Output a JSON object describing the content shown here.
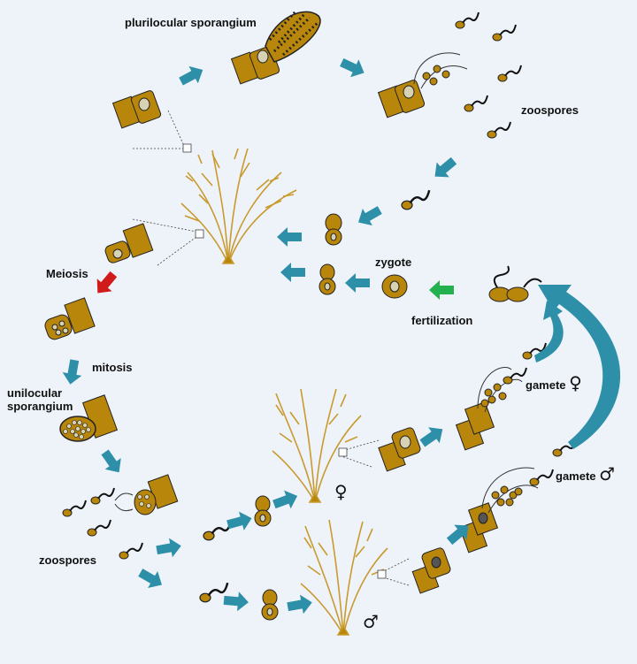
{
  "labels": {
    "plurilocular": "plurilocular sporangium",
    "zoospores_top": "zoospores",
    "zygote": "zygote",
    "fertilization": "fertilization",
    "meiosis": "Meiosis",
    "mitosis": "mitosis",
    "unilocular_line1": "unilocular",
    "unilocular_line2": "sporangium",
    "zoospores_bottom": "zoospores",
    "gamete_female_text": "gamete",
    "gamete_female_symbol": "♀",
    "gamete_male_text": "gamete",
    "gamete_male_symbol": "♂",
    "female_plant_symbol": "♀",
    "male_plant_symbol": "♂"
  },
  "colors": {
    "background": "#eef3f9",
    "cell_fill": "#b8860b",
    "cell_outline": "#222222",
    "nucleus_fill": "#d8d2b4",
    "filament": "#c99a2e",
    "cycle_arrow": "#2e8fa8",
    "meiosis_arrow": "#d11a1a",
    "fertilization_arrow": "#22b14c",
    "flagella": "#111111"
  }
}
